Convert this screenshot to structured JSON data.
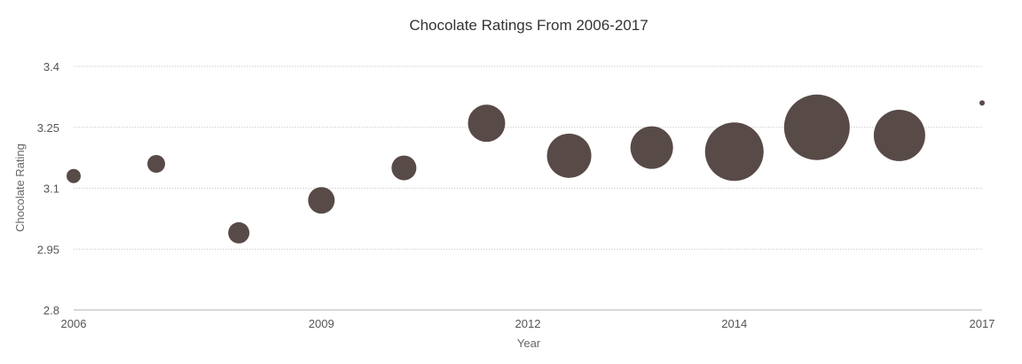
{
  "chart_data": {
    "type": "bubble",
    "title": "Chocolate Ratings From 2006-2017",
    "xlabel": "Year",
    "ylabel": "Chocolate Rating",
    "ylim": [
      2.8,
      3.4
    ],
    "yticks": [
      "3.4",
      "3.25",
      "3.1",
      "2.95",
      "2.8"
    ],
    "xtick_labels": [
      {
        "label": "2006",
        "index": 0
      },
      {
        "label": "2009",
        "index": 3
      },
      {
        "label": "2012",
        "index": 5.5
      },
      {
        "label": "2014",
        "index": 8
      },
      {
        "label": "2017",
        "index": 11
      }
    ],
    "grid": true,
    "legend": null,
    "color": "#584a47",
    "categories": [
      "2006",
      "2007",
      "2008",
      "2009",
      "2010",
      "2011",
      "2012",
      "2013",
      "2014",
      "2015",
      "2016",
      "2017"
    ],
    "values": [
      3.13,
      3.16,
      2.99,
      3.07,
      3.15,
      3.26,
      3.18,
      3.2,
      3.19,
      3.25,
      3.23,
      3.31
    ],
    "sizes": [
      8,
      10,
      12,
      15,
      14,
      21,
      25,
      24,
      33,
      37,
      29,
      3
    ]
  }
}
